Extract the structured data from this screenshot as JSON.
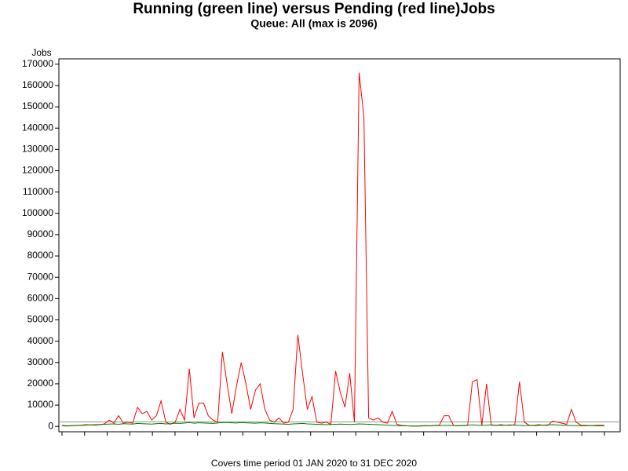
{
  "chart_data": {
    "type": "line",
    "title": "Running (green line) versus Pending (red line)Jobs",
    "subtitle": "Queue: All (max is 2096)",
    "y_label": "Jobs",
    "footer": "Covers time period 01 JAN 2020 to 31 DEC 2020",
    "reference_line": {
      "value": 2096,
      "color": "#8a9a8a"
    },
    "ylim": [
      -2500,
      172500
    ],
    "yticks": [
      0,
      10000,
      20000,
      30000,
      40000,
      50000,
      60000,
      70000,
      80000,
      90000,
      100000,
      110000,
      120000,
      130000,
      140000,
      150000,
      160000,
      170000
    ],
    "series": [
      {
        "name": "Pending",
        "color": "#ff0000",
        "values": [
          500,
          300,
          400,
          500,
          600,
          800,
          700,
          600,
          800,
          1200,
          3000,
          1500,
          5000,
          1500,
          2000,
          1500,
          9000,
          6000,
          7000,
          3000,
          5000,
          12000,
          2000,
          1000,
          2000,
          8000,
          3000,
          27000,
          4000,
          11000,
          11000,
          5000,
          3000,
          2000,
          35000,
          20000,
          6000,
          19000,
          30000,
          20000,
          8000,
          17000,
          20000,
          8000,
          3000,
          2000,
          4000,
          1500,
          2000,
          8000,
          43000,
          25000,
          8000,
          14000,
          2000,
          1500,
          2000,
          1000,
          26000,
          16000,
          9000,
          25000,
          2000,
          166000,
          145000,
          4000,
          3000,
          4000,
          2000,
          1500,
          7000,
          1000,
          500,
          300,
          200,
          200,
          300,
          400,
          300,
          500,
          600,
          5000,
          5000,
          500,
          300,
          400,
          500,
          21000,
          22000,
          500,
          20000,
          600,
          500,
          800,
          600,
          500,
          800,
          21000,
          2000,
          600,
          500,
          800,
          600,
          500,
          2500,
          2000,
          1500,
          1000,
          8000,
          2000,
          600,
          500,
          400,
          500,
          600,
          500
        ]
      },
      {
        "name": "Running",
        "color": "#008000",
        "values": [
          300,
          200,
          300,
          400,
          500,
          600,
          700,
          800,
          900,
          1000,
          1100,
          1200,
          1000,
          1300,
          1200,
          1100,
          1400,
          1300,
          1200,
          1100,
          1300,
          1400,
          1200,
          1300,
          1500,
          1400,
          1600,
          1800,
          1500,
          1700,
          1600,
          1500,
          1400,
          1600,
          1900,
          1800,
          1700,
          1600,
          1800,
          1700,
          1600,
          1500,
          1700,
          1600,
          1400,
          1300,
          1200,
          1100,
          1000,
          1200,
          1300,
          1400,
          1200,
          1100,
          1000,
          900,
          800,
          900,
          1000,
          1100,
          1000,
          900,
          1000,
          1200,
          1100,
          1000,
          900,
          800,
          700,
          600,
          500,
          400,
          300,
          300,
          200,
          200,
          200,
          300,
          300,
          400,
          400,
          500,
          500,
          400,
          400,
          500,
          600,
          700,
          600,
          500,
          600,
          700,
          600,
          500,
          600,
          700,
          600,
          500,
          400,
          500,
          400,
          500,
          600,
          700,
          800,
          700,
          600,
          500,
          400,
          400,
          300,
          300,
          400,
          300,
          300,
          300
        ]
      }
    ]
  }
}
